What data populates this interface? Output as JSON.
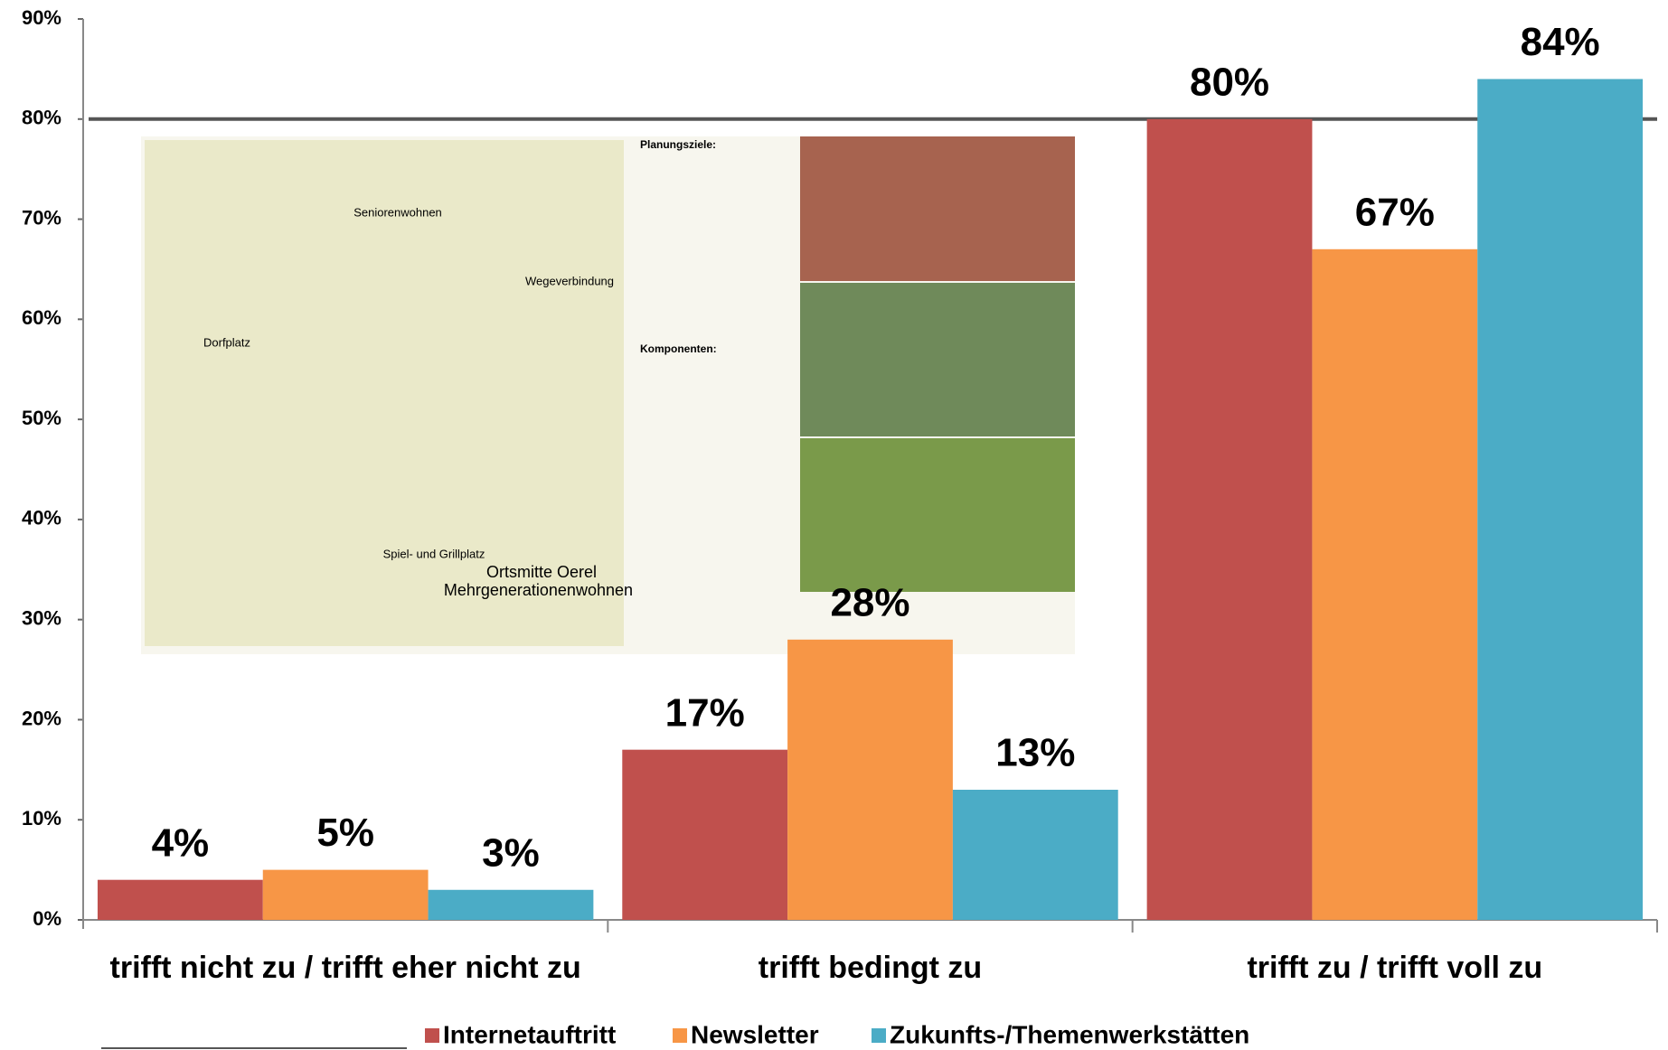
{
  "chart_data": {
    "type": "bar",
    "categories": [
      "trifft nicht zu / trifft eher nicht zu",
      "trifft bedingt zu",
      "trifft zu / trifft voll zu"
    ],
    "series": [
      {
        "name": "Internetauftritt",
        "color": "#c0504d",
        "values": [
          4,
          17,
          80
        ],
        "value_labels": [
          "4%",
          "17%",
          "80%"
        ]
      },
      {
        "name": "Newsletter",
        "color": "#f79646",
        "values": [
          5,
          28,
          67
        ],
        "value_labels": [
          "5%",
          "28%",
          "67%"
        ]
      },
      {
        "name": "Zukunfts-/Themenwerkstätten",
        "color": "#4bacc6",
        "values": [
          3,
          13,
          84
        ],
        "value_labels": [
          "3%",
          "13%",
          "84%"
        ]
      }
    ],
    "ylim": [
      0,
      90
    ],
    "yticks": [
      {
        "value": 0,
        "label": "0%"
      },
      {
        "value": 10,
        "label": "10%"
      },
      {
        "value": 20,
        "label": "20%"
      },
      {
        "value": 30,
        "label": "30%"
      },
      {
        "value": 40,
        "label": "40%"
      },
      {
        "value": 50,
        "label": "50%"
      },
      {
        "value": 60,
        "label": "60%"
      },
      {
        "value": 70,
        "label": "70%"
      },
      {
        "value": 80,
        "label": "80%"
      },
      {
        "value": 90,
        "label": "90%"
      }
    ],
    "hline": 80,
    "legend": "bottom"
  },
  "inset": {
    "title": "Ortsmitte Oerel",
    "subtitle": "Mehrgenerationenwohnen",
    "labels": [
      "Seniorenwohnen",
      "Dorfplatz",
      "Wegeverbindung",
      "Spiel- und Grillplatz"
    ],
    "headings": [
      "Planungsziele:",
      "Komponenten:"
    ]
  }
}
